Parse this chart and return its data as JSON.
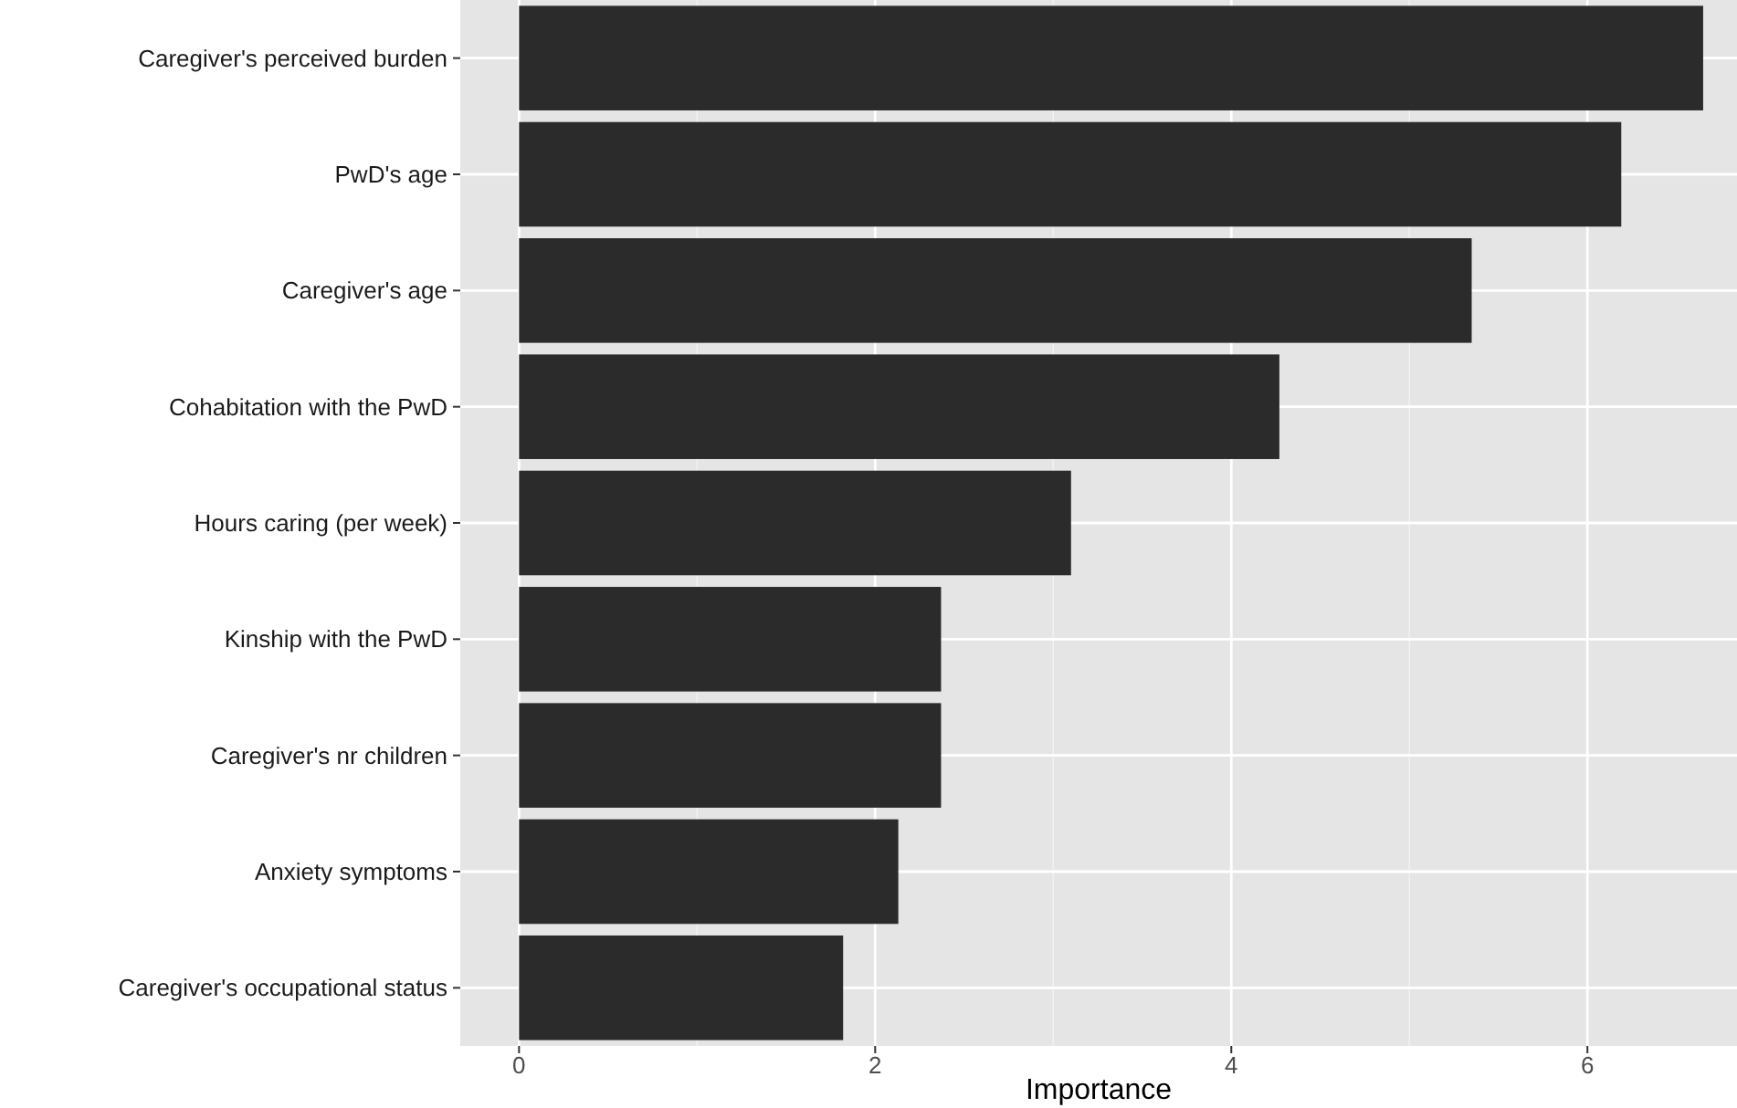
{
  "chart_data": {
    "type": "bar",
    "orientation": "horizontal",
    "xlabel": "Importance",
    "categories": [
      "Caregiver's perceived burden",
      "PwD's age",
      "Caregiver's age",
      "Cohabitation with the PwD",
      "Hours caring (per week)",
      "Kinship with the PwD",
      "Caregiver's nr children",
      "Anxiety symptoms",
      "Caregiver's occupational status"
    ],
    "values": [
      6.65,
      6.19,
      5.35,
      4.27,
      3.1,
      2.37,
      2.37,
      2.13,
      1.82
    ],
    "color": "#2b2b2b",
    "xlim": [
      -0.33,
      6.84
    ],
    "xticks": [
      0,
      2,
      4,
      6
    ],
    "grid": true
  }
}
